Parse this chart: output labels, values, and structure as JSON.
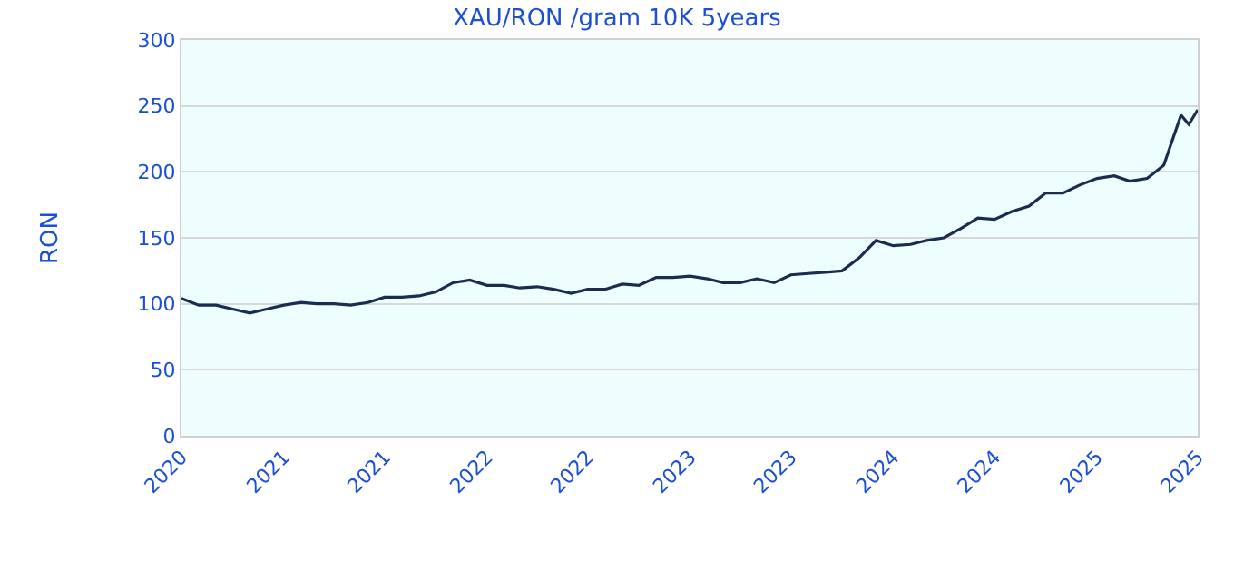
{
  "chart_data": {
    "type": "line",
    "title": "XAU/RON /gram 10K 5years",
    "ylabel": "RON",
    "x": [
      "2020-07",
      "2020-08",
      "2020-09",
      "2020-10",
      "2020-11",
      "2020-12",
      "2021-01",
      "2021-02",
      "2021-03",
      "2021-04",
      "2021-05",
      "2021-06",
      "2021-07",
      "2021-08",
      "2021-09",
      "2021-10",
      "2021-11",
      "2021-12",
      "2022-01",
      "2022-02",
      "2022-03",
      "2022-04",
      "2022-05",
      "2022-06",
      "2022-07",
      "2022-08",
      "2022-09",
      "2022-10",
      "2022-11",
      "2022-12",
      "2023-01",
      "2023-02",
      "2023-03",
      "2023-04",
      "2023-05",
      "2023-06",
      "2023-07",
      "2023-08",
      "2023-09",
      "2023-10",
      "2023-11",
      "2023-12",
      "2024-01",
      "2024-02",
      "2024-03",
      "2024-04",
      "2024-05",
      "2024-06",
      "2024-07",
      "2024-08",
      "2024-09",
      "2024-10",
      "2024-11",
      "2024-12",
      "2025-01",
      "2025-02",
      "2025-03",
      "2025-04",
      "2025-05",
      "2025-06",
      "2025-06-15",
      "2025-07"
    ],
    "series": [
      {
        "color": "#1b2d4f",
        "values": [
          104,
          99,
          99,
          96,
          93,
          96,
          99,
          101,
          100,
          100,
          99,
          101,
          105,
          105,
          106,
          109,
          116,
          118,
          114,
          114,
          112,
          113,
          111,
          108,
          111,
          111,
          115,
          114,
          120,
          120,
          121,
          119,
          116,
          116,
          119,
          116,
          122,
          123,
          124,
          125,
          135,
          148,
          144,
          145,
          148,
          150,
          157,
          165,
          164,
          170,
          174,
          184,
          184,
          190,
          195,
          197,
          193,
          195,
          205,
          243,
          236,
          247
        ]
      }
    ],
    "xlim": [
      "2020-07",
      "2025-07"
    ],
    "xticks": [
      {
        "value": "2020-07",
        "label": "2020"
      },
      {
        "value": "2021-01",
        "label": "2021"
      },
      {
        "value": "2021-07",
        "label": "2021"
      },
      {
        "value": "2022-01",
        "label": "2022"
      },
      {
        "value": "2022-07",
        "label": "2022"
      },
      {
        "value": "2023-01",
        "label": "2023"
      },
      {
        "value": "2023-07",
        "label": "2023"
      },
      {
        "value": "2024-01",
        "label": "2024"
      },
      {
        "value": "2024-07",
        "label": "2024"
      },
      {
        "value": "2025-01",
        "label": "2025"
      },
      {
        "value": "2025-07",
        "label": "2025"
      }
    ],
    "ylim": [
      0,
      300
    ],
    "yticks": [
      0,
      50,
      100,
      150,
      200,
      250,
      300
    ],
    "grid": "y",
    "marker": "none",
    "line_style": "solid"
  }
}
